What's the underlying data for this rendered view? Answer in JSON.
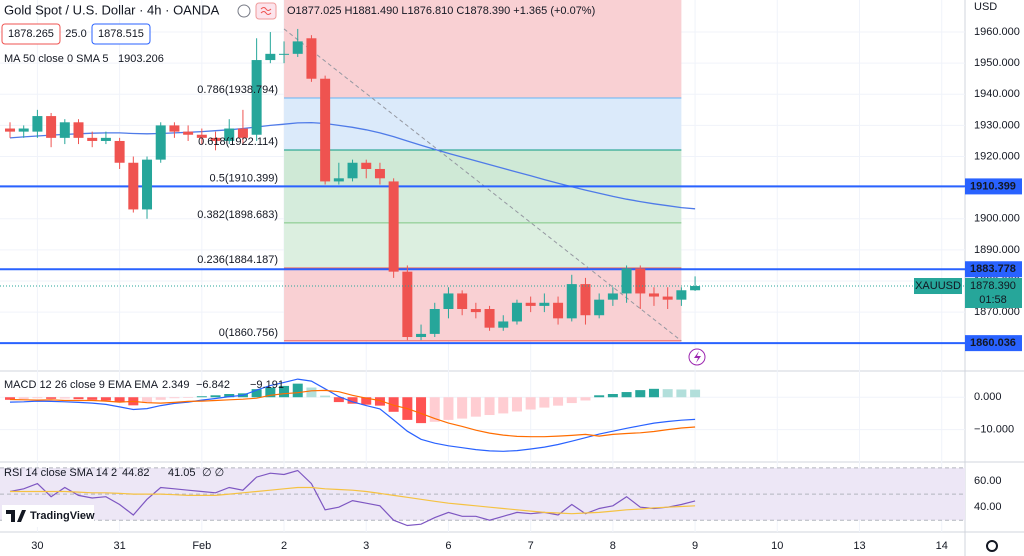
{
  "header": {
    "title": "Gold Spot / U.S. Dollar · 4h · OANDA",
    "ohlc": "O1877.025 H1881.490 L1876.810 C1878.390 +1.365 (+0.07%)",
    "bid": "1878.265",
    "spread": "25.0",
    "ask": "1878.515",
    "currency": "USD"
  },
  "branding": "TradingView",
  "chart_data": [
    {
      "type": "candlestick",
      "xlim": [
        -0.73,
        69.7
      ],
      "xticks": [
        {
          "value": 2,
          "label": "30"
        },
        {
          "value": 8,
          "label": "31"
        },
        {
          "value": 14,
          "label": "Feb"
        },
        {
          "value": 20,
          "label": "2"
        },
        {
          "value": 26,
          "label": "3"
        },
        {
          "value": 32,
          "label": "6"
        },
        {
          "value": 38,
          "label": "7"
        },
        {
          "value": 44,
          "label": "8"
        },
        {
          "value": 50,
          "label": "9"
        },
        {
          "value": 56,
          "label": "10"
        },
        {
          "value": 62,
          "label": "13"
        },
        {
          "value": 68,
          "label": "14"
        }
      ],
      "ylim": [
        1851.4,
        1970.3
      ],
      "yticks": [
        {
          "value": 1870,
          "label": "1870.000"
        },
        {
          "value": 1880,
          "label": "1880.000"
        },
        {
          "value": 1890,
          "label": "1890.000"
        },
        {
          "value": 1900,
          "label": "1900.000"
        },
        {
          "value": 1910,
          "label": "1910.000"
        },
        {
          "value": 1920,
          "label": "1920.000"
        },
        {
          "value": 1930,
          "label": "1930.000"
        },
        {
          "value": 1940,
          "label": "1940.000"
        },
        {
          "value": 1950,
          "label": "1950.000"
        },
        {
          "value": 1960,
          "label": "1960.000"
        }
      ],
      "grid": true,
      "up_color": "#26a69a",
      "down_color": "#ef5350",
      "open": [
        1929,
        1928,
        1928,
        1933,
        1926,
        1931,
        1926,
        1925,
        1925,
        1918,
        1903,
        1919,
        1930,
        1928,
        1927,
        1926,
        1925,
        1929,
        1927,
        1951,
        1953,
        1953,
        1958,
        1945,
        1912,
        1913,
        1918,
        1916,
        1912,
        1883,
        1862,
        1863,
        1871,
        1876,
        1871,
        1871,
        1865,
        1867,
        1873,
        1872,
        1873,
        1868,
        1879,
        1869,
        1874,
        1876,
        1884,
        1876,
        1875,
        1874,
        1877.025
      ],
      "high": [
        1931,
        1930,
        1935,
        1934,
        1932,
        1932,
        1928,
        1928,
        1926,
        1920,
        1920,
        1931,
        1931,
        1930,
        1929,
        1928,
        1932,
        1935,
        1958,
        1960,
        1957,
        1961,
        1959,
        1946,
        1918,
        1919,
        1919,
        1918,
        1913,
        1885,
        1866,
        1873,
        1878,
        1877,
        1873,
        1872,
        1869,
        1874,
        1875,
        1876,
        1875,
        1882,
        1881,
        1876,
        1878,
        1885,
        1885,
        1878,
        1878,
        1878,
        1881.49
      ],
      "low": [
        1926,
        1926,
        1926,
        1923,
        1924,
        1924,
        1923,
        1924,
        1916,
        1902,
        1900,
        1918,
        1926,
        1925,
        1924,
        1922,
        1924,
        1924,
        1925,
        1950,
        1950,
        1952,
        1944,
        1911,
        1911,
        1912,
        1913,
        1911,
        1881,
        1861,
        1861,
        1862,
        1868,
        1869,
        1868,
        1864,
        1864,
        1866,
        1870,
        1870,
        1866,
        1867,
        1866,
        1868,
        1872,
        1873,
        1871,
        1872,
        1871,
        1872,
        1876.81
      ],
      "close": [
        1928,
        1929,
        1933,
        1926,
        1931,
        1926,
        1925,
        1926,
        1918,
        1903,
        1919,
        1930,
        1928,
        1927,
        1926,
        1925,
        1929,
        1926,
        1951,
        1953,
        1953,
        1957,
        1945,
        1912,
        1913,
        1918,
        1916,
        1913,
        1883,
        1862,
        1863,
        1871,
        1876,
        1871,
        1870,
        1865,
        1867,
        1873,
        1872,
        1873,
        1868,
        1879,
        1869,
        1874,
        1876,
        1884,
        1876,
        1875,
        1874,
        1877.025,
        1878.39
      ],
      "series": [
        {
          "name": "MA 50 close 0 SMA 5",
          "color": "#4f7be8",
          "values": [
            1926.0,
            1926.3,
            1926.6,
            1926.9,
            1927.1,
            1927.3,
            1927.5,
            1927.6,
            1927.6,
            1927.4,
            1927.3,
            1927.4,
            1927.6,
            1927.8,
            1928.0,
            1928.3,
            1928.6,
            1929.0,
            1929.5,
            1930.0,
            1930.4,
            1930.8,
            1930.9,
            1930.6,
            1930.0,
            1929.4,
            1928.6,
            1927.6,
            1926.4,
            1925.0,
            1923.6,
            1922.3,
            1921.0,
            1919.8,
            1918.6,
            1917.4,
            1916.2,
            1915.0,
            1913.8,
            1912.6,
            1911.4,
            1910.3,
            1909.2,
            1908.2,
            1907.2,
            1906.3,
            1905.5,
            1904.8,
            1904.2,
            1903.6,
            1903.206
          ]
        }
      ],
      "fib": {
        "levels": [
          {
            "value": 1860.756,
            "label": "0(1860.756)"
          },
          {
            "value": 1884.187,
            "label": "0.236(1884.187)"
          },
          {
            "value": 1898.683,
            "label": "0.382(1898.683)"
          },
          {
            "value": 1910.399,
            "label": "0.5(1910.399)"
          },
          {
            "value": 1922.114,
            "label": "0.618(1922.114)"
          },
          {
            "value": 1938.794,
            "label": "0.786(1938.794)"
          }
        ],
        "zone_colors": [
          "#f9d0d3",
          "#dcefe0",
          "#d5ecdc",
          "#cfe9d6",
          "#dbeafa",
          "#f9d0d3"
        ],
        "line_colors": [
          "#ef5350",
          "#ef5350",
          "#81c784",
          "#4caf50",
          "#089981",
          "#64b5f6"
        ]
      },
      "hlines": [
        {
          "value": 1910.399,
          "color": "#2962ff"
        },
        {
          "value": 1883.778,
          "color": "#2962ff"
        },
        {
          "value": 1860.036,
          "color": "#2962ff"
        }
      ],
      "last_price": {
        "value": 1878.39,
        "label": "1878.390",
        "symbol": "XAUUSD",
        "countdown": "01:58",
        "color": "#26a69a"
      }
    },
    {
      "type": "macd",
      "title": "MACD 12 26 close 9 EMA EMA",
      "ylim": [
        -19.4,
        7.8
      ],
      "yticks": [
        {
          "value": 0,
          "label": "0.000"
        },
        {
          "value": -10,
          "label": "−10.000"
        }
      ],
      "histogram": {
        "colors": [
          "#26a69a",
          "#b2dfdb",
          "#ff5252",
          "#ffcdd2"
        ],
        "values": [
          -0.8,
          -0.6,
          -0.3,
          -0.5,
          -0.4,
          -0.6,
          -0.8,
          -1.0,
          -1.5,
          -2.5,
          -1.8,
          -0.8,
          -0.3,
          -0.2,
          0.3,
          0.6,
          1.0,
          1.2,
          2.5,
          3.0,
          3.5,
          4.2,
          3.0,
          0.5,
          -1.5,
          -2.0,
          -2.3,
          -2.6,
          -4.5,
          -7.0,
          -8.0,
          -7.6,
          -7.0,
          -6.6,
          -6.0,
          -5.5,
          -5.0,
          -4.4,
          -3.8,
          -3.2,
          -2.6,
          -1.8,
          -1.0,
          0.6,
          1.0,
          1.6,
          2.2,
          2.6,
          2.5,
          2.4,
          2.349
        ]
      },
      "series": [
        {
          "color": "#2962ff",
          "value_label": "−6.842",
          "values": [
            -1.5,
            -1.4,
            -1.2,
            -1.3,
            -1.4,
            -1.6,
            -1.8,
            -2.2,
            -3.0,
            -3.8,
            -3.5,
            -2.6,
            -1.9,
            -1.5,
            -0.9,
            -0.4,
            0.2,
            0.6,
            2.2,
            3.6,
            4.6,
            5.6,
            5.0,
            2.6,
            0.2,
            -1.4,
            -2.6,
            -3.6,
            -7.0,
            -10.5,
            -13.0,
            -14.2,
            -15.0,
            -15.6,
            -16.2,
            -16.6,
            -16.7,
            -16.5,
            -16.0,
            -15.4,
            -14.6,
            -13.6,
            -12.5,
            -11.4,
            -10.5,
            -9.6,
            -8.8,
            -8.0,
            -7.5,
            -7.1,
            -6.842
          ]
        },
        {
          "color": "#ff6d00",
          "value_label": "−9.191",
          "values": [
            -0.7,
            -0.8,
            -0.9,
            -0.8,
            -1.0,
            -1.0,
            -1.0,
            -1.2,
            -1.5,
            -1.3,
            -1.7,
            -1.8,
            -1.6,
            -1.3,
            -1.2,
            -1.0,
            -0.8,
            -0.6,
            -0.3,
            0.6,
            1.1,
            1.4,
            2.0,
            2.1,
            1.7,
            0.6,
            -0.3,
            -1.0,
            -2.5,
            -3.5,
            -5.0,
            -6.6,
            -8.0,
            -9.0,
            -10.2,
            -11.1,
            -11.7,
            -12.1,
            -12.2,
            -12.2,
            -12.0,
            -11.8,
            -11.5,
            -12.0,
            -11.5,
            -11.2,
            -11.0,
            -10.6,
            -10.0,
            -9.5,
            -9.191
          ]
        }
      ]
    },
    {
      "type": "rsi",
      "title": "RSI 14 close SMA 14 2",
      "extra_label": "∅ ∅",
      "ylim": [
        21,
        73
      ],
      "yticks": [
        {
          "value": 60,
          "label": "60.00"
        },
        {
          "value": 40,
          "label": "40.00"
        }
      ],
      "levels": [
        30,
        50,
        70
      ],
      "band_color": "#ede7f6",
      "series": [
        {
          "color": "#7e57c2",
          "values": [
            52,
            54,
            58,
            48,
            55,
            49,
            47,
            48,
            42,
            34,
            46,
            55,
            54,
            53,
            52,
            51,
            55,
            53,
            63,
            66,
            65,
            68,
            58,
            38,
            40,
            45,
            43,
            41,
            30,
            26,
            27,
            32,
            36,
            33,
            33,
            30,
            33,
            36,
            35,
            36,
            34,
            42,
            35,
            39,
            41,
            48,
            40,
            39,
            40,
            42,
            44.82
          ]
        },
        {
          "color": "#f5c242",
          "values": [
            52,
            52,
            52,
            52,
            52,
            51.5,
            51,
            51,
            50.5,
            50,
            50,
            50,
            49.5,
            49,
            49,
            49,
            50,
            51,
            52,
            53,
            54,
            55,
            55,
            54,
            53.5,
            53,
            52,
            50.5,
            49,
            47.5,
            46,
            44.5,
            43,
            42,
            41,
            40,
            39,
            38,
            37,
            36,
            35.5,
            35,
            35.5,
            36,
            37,
            38,
            38.5,
            39.5,
            40,
            40.5,
            41.05
          ]
        }
      ]
    }
  ]
}
